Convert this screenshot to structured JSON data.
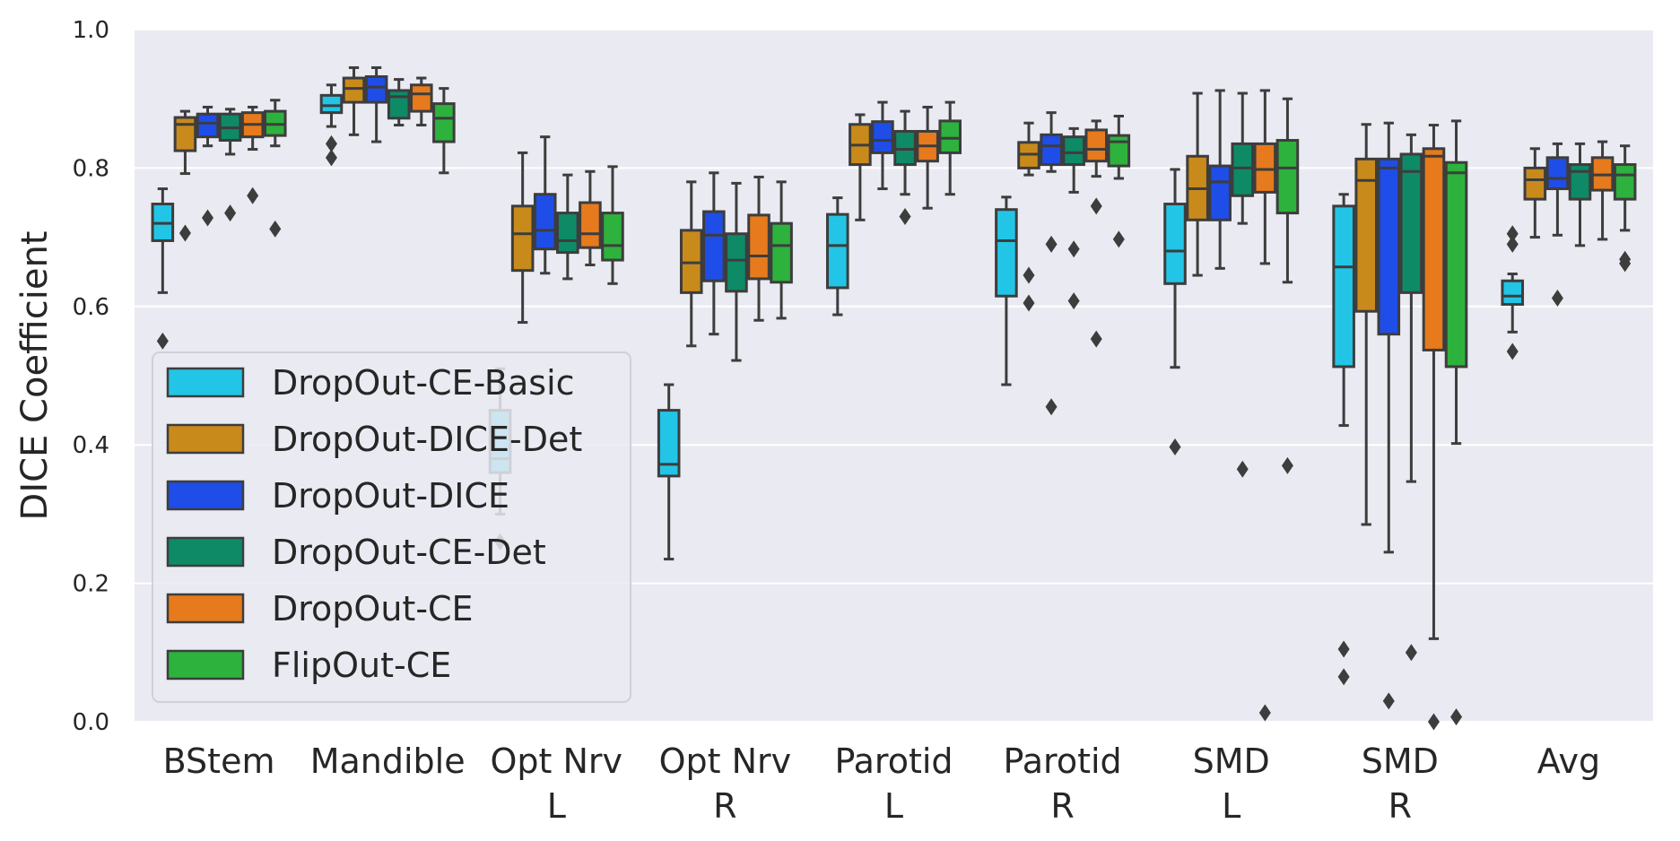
{
  "chart_data": {
    "type": "boxplot",
    "title": "",
    "xlabel": "",
    "ylabel": "DICE Coefficient",
    "ylim": [
      0.0,
      1.0
    ],
    "yticks": [
      "0.0",
      "0.2",
      "0.4",
      "0.6",
      "0.8",
      "1.0"
    ],
    "grid": true,
    "legend_position": "lower-left",
    "categories": [
      {
        "line1": "BStem",
        "line2": ""
      },
      {
        "line1": "Mandible",
        "line2": ""
      },
      {
        "line1": "Opt Nrv",
        "line2": "L"
      },
      {
        "line1": "Opt Nrv",
        "line2": "R"
      },
      {
        "line1": "Parotid",
        "line2": "L"
      },
      {
        "line1": "Parotid",
        "line2": "R"
      },
      {
        "line1": "SMD",
        "line2": "L"
      },
      {
        "line1": "SMD",
        "line2": "R"
      },
      {
        "line1": "Avg",
        "line2": ""
      }
    ],
    "series": [
      {
        "name": "DropOut-CE-Basic",
        "color": "#22c5e6",
        "boxes": [
          {
            "q1": 0.695,
            "med": 0.72,
            "q3": 0.748,
            "wl": 0.62,
            "wh": 0.77,
            "fliers": [
              0.55
            ]
          },
          {
            "q1": 0.88,
            "med": 0.89,
            "q3": 0.905,
            "wl": 0.86,
            "wh": 0.92,
            "fliers": [
              0.835,
              0.815
            ]
          },
          {
            "q1": 0.36,
            "med": 0.38,
            "q3": 0.45,
            "wl": 0.3,
            "wh": 0.51,
            "fliers": [
              0.26
            ]
          },
          {
            "q1": 0.355,
            "med": 0.372,
            "q3": 0.45,
            "wl": 0.235,
            "wh": 0.487,
            "fliers": []
          },
          {
            "q1": 0.627,
            "med": 0.688,
            "q3": 0.733,
            "wl": 0.588,
            "wh": 0.757,
            "fliers": []
          },
          {
            "q1": 0.615,
            "med": 0.695,
            "q3": 0.74,
            "wl": 0.487,
            "wh": 0.758,
            "fliers": []
          },
          {
            "q1": 0.633,
            "med": 0.68,
            "q3": 0.748,
            "wl": 0.512,
            "wh": 0.798,
            "fliers": [
              0.397
            ]
          },
          {
            "q1": 0.513,
            "med": 0.657,
            "q3": 0.745,
            "wl": 0.428,
            "wh": 0.762,
            "fliers": [
              0.105,
              0.065
            ]
          },
          {
            "q1": 0.603,
            "med": 0.615,
            "q3": 0.637,
            "wl": 0.563,
            "wh": 0.647,
            "fliers": [
              0.705,
              0.69,
              0.535
            ]
          }
        ]
      },
      {
        "name": "DropOut-DICE-Det",
        "color": "#c98a1c",
        "boxes": [
          {
            "q1": 0.825,
            "med": 0.863,
            "q3": 0.873,
            "wl": 0.792,
            "wh": 0.882,
            "fliers": [
              0.706
            ]
          },
          {
            "q1": 0.895,
            "med": 0.915,
            "q3": 0.93,
            "wl": 0.848,
            "wh": 0.945,
            "fliers": []
          },
          {
            "q1": 0.652,
            "med": 0.705,
            "q3": 0.745,
            "wl": 0.577,
            "wh": 0.822,
            "fliers": []
          },
          {
            "q1": 0.62,
            "med": 0.663,
            "q3": 0.71,
            "wl": 0.543,
            "wh": 0.78,
            "fliers": []
          },
          {
            "q1": 0.805,
            "med": 0.833,
            "q3": 0.863,
            "wl": 0.725,
            "wh": 0.877,
            "fliers": []
          },
          {
            "q1": 0.8,
            "med": 0.82,
            "q3": 0.837,
            "wl": 0.79,
            "wh": 0.865,
            "fliers": [
              0.645,
              0.605
            ]
          },
          {
            "q1": 0.725,
            "med": 0.77,
            "q3": 0.817,
            "wl": 0.645,
            "wh": 0.908,
            "fliers": []
          },
          {
            "q1": 0.593,
            "med": 0.782,
            "q3": 0.813,
            "wl": 0.285,
            "wh": 0.863,
            "fliers": []
          },
          {
            "q1": 0.755,
            "med": 0.783,
            "q3": 0.8,
            "wl": 0.7,
            "wh": 0.828,
            "fliers": []
          }
        ]
      },
      {
        "name": "DropOut-DICE",
        "color": "#1f4de8",
        "boxes": [
          {
            "q1": 0.845,
            "med": 0.865,
            "q3": 0.878,
            "wl": 0.832,
            "wh": 0.888,
            "fliers": [
              0.728
            ]
          },
          {
            "q1": 0.895,
            "med": 0.917,
            "q3": 0.932,
            "wl": 0.838,
            "wh": 0.945,
            "fliers": []
          },
          {
            "q1": 0.683,
            "med": 0.71,
            "q3": 0.762,
            "wl": 0.648,
            "wh": 0.845,
            "fliers": []
          },
          {
            "q1": 0.637,
            "med": 0.703,
            "q3": 0.737,
            "wl": 0.56,
            "wh": 0.793,
            "fliers": []
          },
          {
            "q1": 0.822,
            "med": 0.84,
            "q3": 0.867,
            "wl": 0.77,
            "wh": 0.895,
            "fliers": []
          },
          {
            "q1": 0.805,
            "med": 0.832,
            "q3": 0.848,
            "wl": 0.795,
            "wh": 0.88,
            "fliers": [
              0.69,
              0.455
            ]
          },
          {
            "q1": 0.725,
            "med": 0.78,
            "q3": 0.803,
            "wl": 0.655,
            "wh": 0.912,
            "fliers": []
          },
          {
            "q1": 0.56,
            "med": 0.8,
            "q3": 0.813,
            "wl": 0.245,
            "wh": 0.865,
            "fliers": [
              0.03
            ]
          },
          {
            "q1": 0.77,
            "med": 0.785,
            "q3": 0.815,
            "wl": 0.703,
            "wh": 0.835,
            "fliers": [
              0.612
            ]
          }
        ]
      },
      {
        "name": "DropOut-CE-Det",
        "color": "#0e8a67",
        "boxes": [
          {
            "q1": 0.84,
            "med": 0.858,
            "q3": 0.878,
            "wl": 0.82,
            "wh": 0.885,
            "fliers": [
              0.735
            ]
          },
          {
            "q1": 0.872,
            "med": 0.903,
            "q3": 0.912,
            "wl": 0.862,
            "wh": 0.928,
            "fliers": []
          },
          {
            "q1": 0.678,
            "med": 0.695,
            "q3": 0.735,
            "wl": 0.64,
            "wh": 0.79,
            "fliers": []
          },
          {
            "q1": 0.622,
            "med": 0.667,
            "q3": 0.705,
            "wl": 0.522,
            "wh": 0.778,
            "fliers": []
          },
          {
            "q1": 0.805,
            "med": 0.827,
            "q3": 0.853,
            "wl": 0.762,
            "wh": 0.882,
            "fliers": [
              0.73
            ]
          },
          {
            "q1": 0.805,
            "med": 0.822,
            "q3": 0.845,
            "wl": 0.765,
            "wh": 0.857,
            "fliers": [
              0.683,
              0.608
            ]
          },
          {
            "q1": 0.76,
            "med": 0.8,
            "q3": 0.835,
            "wl": 0.72,
            "wh": 0.908,
            "fliers": [
              0.365
            ]
          },
          {
            "q1": 0.62,
            "med": 0.795,
            "q3": 0.82,
            "wl": 0.347,
            "wh": 0.848,
            "fliers": [
              0.1
            ]
          },
          {
            "q1": 0.755,
            "med": 0.795,
            "q3": 0.805,
            "wl": 0.688,
            "wh": 0.835,
            "fliers": []
          }
        ]
      },
      {
        "name": "DropOut-CE",
        "color": "#e67a1c",
        "boxes": [
          {
            "q1": 0.845,
            "med": 0.863,
            "q3": 0.88,
            "wl": 0.827,
            "wh": 0.888,
            "fliers": [
              0.76
            ]
          },
          {
            "q1": 0.882,
            "med": 0.907,
            "q3": 0.92,
            "wl": 0.862,
            "wh": 0.93,
            "fliers": []
          },
          {
            "q1": 0.685,
            "med": 0.705,
            "q3": 0.75,
            "wl": 0.66,
            "wh": 0.795,
            "fliers": []
          },
          {
            "q1": 0.64,
            "med": 0.673,
            "q3": 0.732,
            "wl": 0.58,
            "wh": 0.787,
            "fliers": []
          },
          {
            "q1": 0.81,
            "med": 0.832,
            "q3": 0.853,
            "wl": 0.742,
            "wh": 0.888,
            "fliers": []
          },
          {
            "q1": 0.81,
            "med": 0.827,
            "q3": 0.855,
            "wl": 0.788,
            "wh": 0.868,
            "fliers": [
              0.745,
              0.553
            ]
          },
          {
            "q1": 0.765,
            "med": 0.798,
            "q3": 0.835,
            "wl": 0.662,
            "wh": 0.912,
            "fliers": [
              0.013
            ]
          },
          {
            "q1": 0.537,
            "med": 0.817,
            "q3": 0.828,
            "wl": 0.12,
            "wh": 0.862,
            "fliers": [
              0.0
            ]
          },
          {
            "q1": 0.768,
            "med": 0.79,
            "q3": 0.815,
            "wl": 0.697,
            "wh": 0.838,
            "fliers": []
          }
        ]
      },
      {
        "name": "FlipOut-CE",
        "color": "#2db23d",
        "boxes": [
          {
            "q1": 0.847,
            "med": 0.863,
            "q3": 0.882,
            "wl": 0.832,
            "wh": 0.898,
            "fliers": [
              0.712
            ]
          },
          {
            "q1": 0.838,
            "med": 0.872,
            "q3": 0.893,
            "wl": 0.793,
            "wh": 0.915,
            "fliers": []
          },
          {
            "q1": 0.667,
            "med": 0.688,
            "q3": 0.735,
            "wl": 0.633,
            "wh": 0.802,
            "fliers": []
          },
          {
            "q1": 0.635,
            "med": 0.688,
            "q3": 0.72,
            "wl": 0.583,
            "wh": 0.78,
            "fliers": []
          },
          {
            "q1": 0.822,
            "med": 0.843,
            "q3": 0.868,
            "wl": 0.762,
            "wh": 0.895,
            "fliers": []
          },
          {
            "q1": 0.803,
            "med": 0.838,
            "q3": 0.847,
            "wl": 0.785,
            "wh": 0.875,
            "fliers": [
              0.697
            ]
          },
          {
            "q1": 0.735,
            "med": 0.8,
            "q3": 0.84,
            "wl": 0.635,
            "wh": 0.9,
            "fliers": [
              0.37
            ]
          },
          {
            "q1": 0.513,
            "med": 0.793,
            "q3": 0.808,
            "wl": 0.402,
            "wh": 0.868,
            "fliers": [
              0.007
            ]
          },
          {
            "q1": 0.755,
            "med": 0.79,
            "q3": 0.805,
            "wl": 0.71,
            "wh": 0.832,
            "fliers": [
              0.668,
              0.662
            ]
          }
        ]
      }
    ]
  }
}
